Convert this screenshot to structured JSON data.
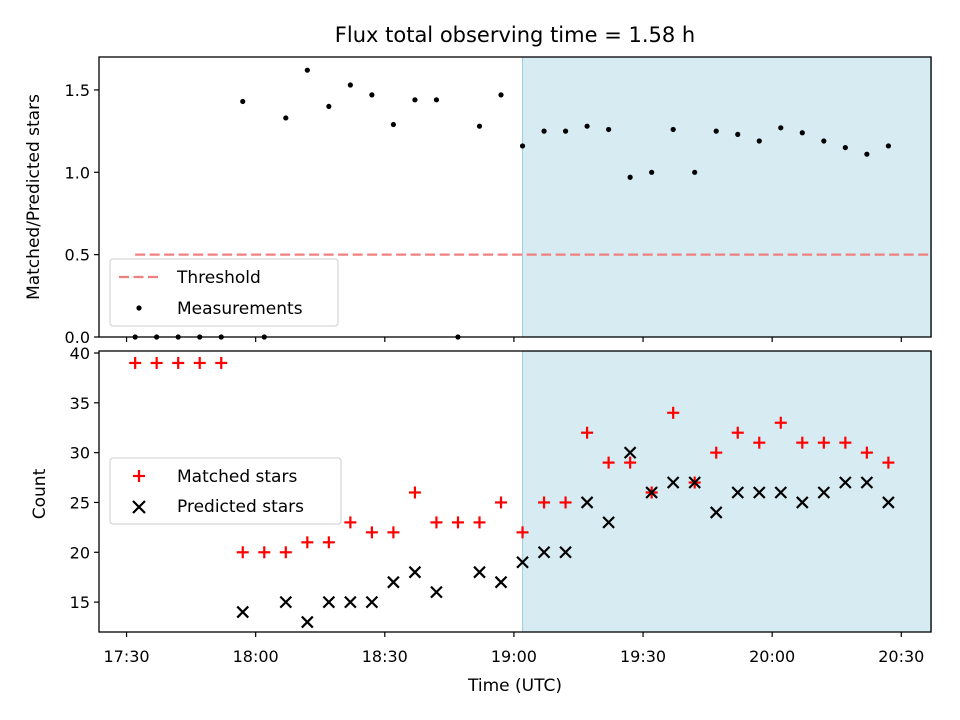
{
  "chart_data": {
    "title": "Flux total observing time = 1.58 h",
    "xlabel": "Time (UTC)",
    "x_ticks": [
      "17:30",
      "18:00",
      "18:30",
      "19:00",
      "19:30",
      "20:00",
      "20:30"
    ],
    "x_tick_minutes": [
      1050,
      1080,
      1110,
      1140,
      1170,
      1200,
      1230
    ],
    "xlim_minutes": [
      1043.6,
      1236.9
    ],
    "shaded_interval_minutes": [
      1142,
      1237
    ],
    "colors": {
      "shade": "#add8e6",
      "threshold": "#f08080",
      "matched": "#ff0000",
      "predicted": "#000000",
      "measurements": "#000000"
    },
    "panels": [
      {
        "type": "scatter",
        "ylabel": "Matched/Predicted stars",
        "ylim": [
          0,
          1.7
        ],
        "y_ticks": [
          0.0,
          0.5,
          1.0,
          1.5
        ],
        "y_tick_labels": [
          "0.0",
          "0.5",
          "1.0",
          "1.5"
        ],
        "legend_position": "lower-left",
        "threshold": {
          "name": "Threshold",
          "y": 0.5,
          "x_range_minutes": [
            1052,
            1237
          ]
        },
        "series": [
          {
            "name": "Measurements",
            "marker": "dot",
            "x_minutes": [
              1052,
              1057,
              1062,
              1067,
              1072,
              1077,
              1082,
              1087,
              1092,
              1097,
              1102,
              1107,
              1112,
              1117,
              1122,
              1127,
              1132,
              1137,
              1142,
              1147,
              1152,
              1157,
              1162,
              1167,
              1172,
              1177,
              1182,
              1187,
              1192,
              1197,
              1202,
              1207,
              1212,
              1217,
              1222,
              1227
            ],
            "y": [
              0.0,
              0.0,
              0.0,
              0.0,
              0.0,
              1.43,
              0.0,
              1.33,
              1.62,
              1.4,
              1.53,
              1.47,
              1.29,
              1.44,
              1.44,
              0.0,
              1.28,
              1.47,
              1.16,
              1.25,
              1.25,
              1.28,
              1.26,
              0.97,
              1.0,
              1.26,
              1.0,
              1.25,
              1.23,
              1.19,
              1.27,
              1.24,
              1.19,
              1.15,
              1.11,
              1.16
            ]
          }
        ]
      },
      {
        "type": "scatter",
        "ylabel": "Count",
        "ylim": [
          12.0,
          40.2
        ],
        "y_ticks": [
          15,
          20,
          25,
          30,
          35,
          40
        ],
        "y_tick_labels": [
          "15",
          "20",
          "25",
          "30",
          "35",
          "40"
        ],
        "legend_position": "center-left",
        "series": [
          {
            "name": "Matched stars",
            "marker": "plus",
            "x_minutes": [
              1052,
              1057,
              1062,
              1067,
              1072,
              1077,
              1082,
              1087,
              1092,
              1097,
              1102,
              1107,
              1112,
              1117,
              1122,
              1127,
              1132,
              1137,
              1142,
              1147,
              1152,
              1157,
              1162,
              1167,
              1172,
              1177,
              1182,
              1187,
              1192,
              1197,
              1202,
              1207,
              1212,
              1217,
              1222,
              1227
            ],
            "y": [
              39,
              39,
              39,
              39,
              39,
              20,
              20,
              20,
              21,
              21,
              23,
              22,
              22,
              26,
              23,
              23,
              23,
              25,
              22,
              25,
              25,
              32,
              29,
              29,
              26,
              34,
              27,
              30,
              32,
              31,
              33,
              31,
              31,
              31,
              30,
              29
            ]
          },
          {
            "name": "Predicted stars",
            "marker": "x",
            "x_minutes": [
              1077,
              1087,
              1092,
              1097,
              1102,
              1107,
              1112,
              1117,
              1122,
              1132,
              1137,
              1142,
              1147,
              1152,
              1157,
              1162,
              1167,
              1172,
              1177,
              1182,
              1187,
              1192,
              1197,
              1202,
              1207,
              1212,
              1217,
              1222,
              1227
            ],
            "y": [
              14,
              15,
              13,
              15,
              15,
              15,
              17,
              18,
              16,
              18,
              17,
              19,
              20,
              20,
              25,
              23,
              30,
              26,
              27,
              27,
              24,
              26,
              26,
              26,
              25,
              26,
              27,
              27,
              25
            ]
          }
        ]
      }
    ]
  }
}
